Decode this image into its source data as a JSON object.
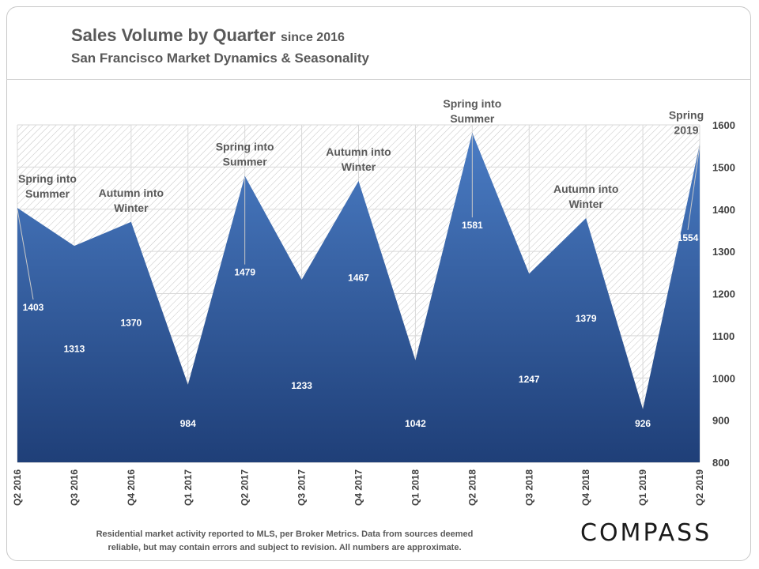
{
  "title": {
    "main": "Sales Volume by Quarter",
    "since": "since 2016",
    "subtitle": "San Francisco Market Dynamics & Seasonality"
  },
  "footnote": {
    "line1": "Residential market activity reported to MLS, per Broker Metrics. Data from sources deemed",
    "line2": "reliable, but may contain errors and subject to revision. All numbers are approximate."
  },
  "logo": "COMPASS",
  "chart_data": {
    "type": "area",
    "categories": [
      "Q2 2016",
      "Q3 2016",
      "Q4 2016",
      "Q1 2017",
      "Q2 2017",
      "Q3 2017",
      "Q4 2017",
      "Q1 2018",
      "Q2 2018",
      "Q3 2018",
      "Q4 2018",
      "Q1 2019",
      "Q2 2019"
    ],
    "values": [
      1403,
      1313,
      1370,
      984,
      1479,
      1233,
      1467,
      1042,
      1581,
      1247,
      1379,
      926,
      1554
    ],
    "ylim": [
      800,
      1600
    ],
    "yticks": [
      800,
      900,
      1000,
      1100,
      1200,
      1300,
      1400,
      1500,
      1600
    ],
    "y_axis_side": "right",
    "grid": true,
    "colors": {
      "area_top": "#4a7cc4",
      "area_bottom": "#1f3f78",
      "hatch": "#bfbfbf",
      "label": "#ffffff",
      "annotation": "#595959"
    },
    "annotations": [
      {
        "index": 0,
        "line1": "Spring into",
        "line2": "Summer"
      },
      {
        "index": 2,
        "line1": "Autumn into",
        "line2": "Winter"
      },
      {
        "index": 4,
        "line1": "Spring into",
        "line2": "Summer"
      },
      {
        "index": 6,
        "line1": "Autumn into",
        "line2": "Winter"
      },
      {
        "index": 8,
        "line1": "Spring into",
        "line2": "Summer"
      },
      {
        "index": 10,
        "line1": "Autumn into",
        "line2": "Winter"
      },
      {
        "index": 12,
        "line1": "Spring",
        "line2": "2019"
      }
    ]
  }
}
